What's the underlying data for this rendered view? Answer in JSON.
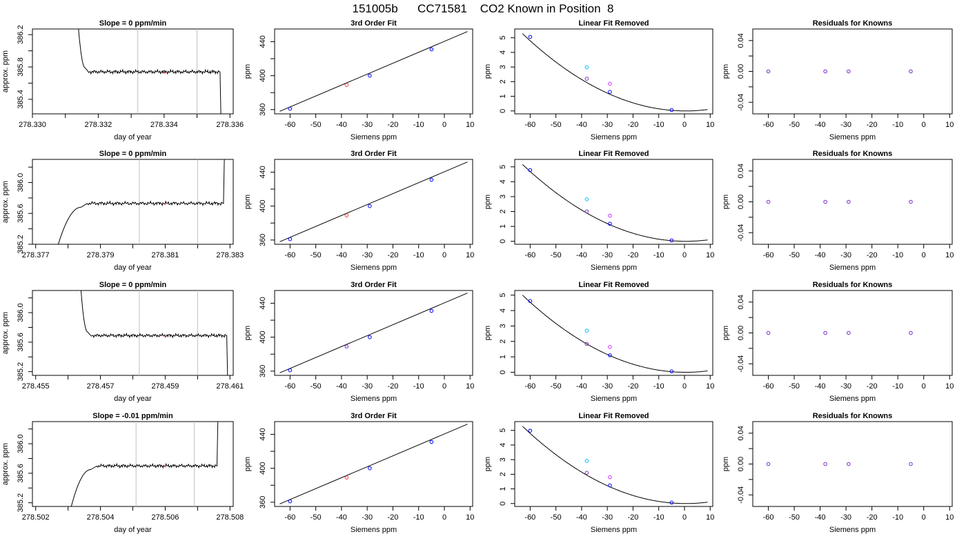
{
  "figure": {
    "title": "151005b      CC71581    CO2 Known in Position  8"
  },
  "colors": {
    "axis": "#000000",
    "trace": "#000000",
    "vline": "#c0c0c0",
    "known_blue": "#0000ff",
    "known_cyan": "#00bfff",
    "known_magenta": "#cc33ff",
    "known_purple": "#7b2ccf",
    "known_red": "#ff4040"
  },
  "chart_data": [
    {
      "type": "line",
      "title": "Slope =  0  ppm/min",
      "xlabel": "day of year",
      "ylabel": "approx. ppm",
      "xlim": [
        278.33,
        278.3361
      ],
      "ylim": [
        385.22,
        386.27
      ],
      "xticks": [
        278.33,
        278.331,
        278.332,
        278.333,
        278.334,
        278.335,
        278.336
      ],
      "xtick_labels": [
        "278.330",
        "",
        "278.332",
        "",
        "278.334",
        "",
        "278.336"
      ],
      "yticks": [
        385.4,
        385.6,
        385.8,
        386.0,
        386.2
      ],
      "ytick_labels": [
        "385.4",
        "",
        "385.8",
        "",
        "386.2"
      ],
      "vlines": [
        278.3332,
        278.335
      ],
      "trace": {
        "x_start": 278.3314,
        "x_drop": 278.3357,
        "start_value": 386.27,
        "level": 385.74,
        "end_value": 385.22,
        "rise_end": 278.3316,
        "settle": 278.3317
      },
      "marker": {
        "x": 278.334,
        "y": 385.74
      }
    },
    {
      "type": "scatter",
      "title": "3rd Order Fit",
      "xlabel": "Siemens ppm",
      "ylabel": "ppm",
      "xlim": [
        -66,
        11
      ],
      "ylim": [
        355,
        455
      ],
      "xticks": [
        -60,
        -50,
        -40,
        -30,
        -20,
        -10,
        0,
        10
      ],
      "xtick_labels": [
        "-60",
        "-50",
        "-40",
        "-30",
        "-20",
        "-10",
        "0",
        "10"
      ],
      "yticks": [
        360,
        380,
        400,
        420,
        440
      ],
      "ytick_labels": [
        "360",
        "",
        "400",
        "",
        "440"
      ],
      "line": {
        "x": [
          -64,
          9
        ],
        "y": [
          358,
          452
        ]
      },
      "points": [
        {
          "x": -60,
          "y": 361,
          "color": "#0000ff"
        },
        {
          "x": -38,
          "y": 389,
          "color": "#ff4040"
        },
        {
          "x": -29,
          "y": 400,
          "color": "#0000ff"
        },
        {
          "x": -5,
          "y": 431,
          "color": "#0000ff"
        }
      ]
    },
    {
      "type": "scatter",
      "title": "Linear Fit Removed",
      "xlabel": "Siemens ppm",
      "ylabel": "ppm",
      "xlim": [
        -66,
        11
      ],
      "ylim": [
        -0.2,
        5.6
      ],
      "xticks": [
        -60,
        -50,
        -40,
        -30,
        -20,
        -10,
        0,
        10
      ],
      "xtick_labels": [
        "-60",
        "-50",
        "-40",
        "-30",
        "-20",
        "-10",
        "0",
        "10"
      ],
      "yticks": [
        0,
        1,
        2,
        3,
        4,
        5
      ],
      "ytick_labels": [
        "0",
        "1",
        "2",
        "3",
        "4",
        "5"
      ],
      "curve": {
        "x_from": -63,
        "x_to": 9,
        "vertex": 0.5,
        "coef": 0.00131
      },
      "points": [
        {
          "x": -60,
          "y": 5.06,
          "color": "#0000ff"
        },
        {
          "x": -38,
          "y": 2.98,
          "color": "#00bfff"
        },
        {
          "x": -38,
          "y": 2.2,
          "color": "#7b2ccf"
        },
        {
          "x": -29,
          "y": 1.86,
          "color": "#cc33ff"
        },
        {
          "x": -29,
          "y": 1.3,
          "color": "#0000ff"
        },
        {
          "x": -5,
          "y": 0.06,
          "color": "#0000ff"
        }
      ]
    },
    {
      "type": "scatter",
      "title": "Residuals for Knowns",
      "xlabel": "Siemens ppm",
      "ylabel": "ppm",
      "xlim": [
        -66,
        11
      ],
      "ylim": [
        -0.055,
        0.055
      ],
      "xticks": [
        -60,
        -50,
        -40,
        -30,
        -20,
        -10,
        0,
        10
      ],
      "xtick_labels": [
        "-60",
        "-50",
        "-40",
        "-30",
        "-20",
        "-10",
        "0",
        "10"
      ],
      "yticks": [
        -0.04,
        -0.02,
        0.0,
        0.02,
        0.04
      ],
      "ytick_labels": [
        "-0.04",
        "",
        "0.00",
        "",
        "0.04"
      ],
      "points": [
        {
          "x": -60,
          "y": 0,
          "color": "#7b2ccf"
        },
        {
          "x": -38,
          "y": 0,
          "color": "#7b2ccf"
        },
        {
          "x": -29,
          "y": 0,
          "color": "#7b2ccf"
        },
        {
          "x": -5,
          "y": 0,
          "color": "#7b2ccf"
        }
      ]
    },
    {
      "type": "line",
      "title": "Slope =  0  ppm/min",
      "xlabel": "day of year",
      "ylabel": "approx. ppm",
      "xlim": [
        278.3769,
        278.3831
      ],
      "ylim": [
        385.2,
        386.3
      ],
      "xticks": [
        278.377,
        278.378,
        278.379,
        278.38,
        278.381,
        278.382,
        278.383
      ],
      "xtick_labels": [
        "278.377",
        "",
        "278.379",
        "",
        "278.381",
        "",
        "278.383"
      ],
      "yticks": [
        385.2,
        385.4,
        385.6,
        385.8,
        386.0,
        386.2
      ],
      "ytick_labels": [
        "385.2",
        "",
        "385.6",
        "",
        "386.0",
        ""
      ],
      "vlines": [
        278.3802,
        278.382
      ],
      "trace": {
        "x_start": 278.3777,
        "x_drop": 278.3828,
        "start_value": 385.2,
        "level": 385.73,
        "end_value": 386.3,
        "rise_end": 278.3784,
        "settle": 278.3786
      },
      "marker": {
        "x": 278.381,
        "y": 385.73
      }
    },
    {
      "type": "scatter",
      "title": "3rd Order Fit",
      "xlabel": "Siemens ppm",
      "ylabel": "ppm",
      "xlim": [
        -66,
        11
      ],
      "ylim": [
        355,
        455
      ],
      "xticks": [
        -60,
        -50,
        -40,
        -30,
        -20,
        -10,
        0,
        10
      ],
      "xtick_labels": [
        "-60",
        "-50",
        "-40",
        "-30",
        "-20",
        "-10",
        "0",
        "10"
      ],
      "yticks": [
        360,
        380,
        400,
        420,
        440
      ],
      "ytick_labels": [
        "360",
        "",
        "400",
        "",
        "440"
      ],
      "line": {
        "x": [
          -64,
          9
        ],
        "y": [
          358,
          452
        ]
      },
      "points": [
        {
          "x": -60,
          "y": 361,
          "color": "#0000ff"
        },
        {
          "x": -38,
          "y": 389,
          "color": "#ff4040"
        },
        {
          "x": -29,
          "y": 400,
          "color": "#0000ff"
        },
        {
          "x": -5,
          "y": 431,
          "color": "#0000ff"
        }
      ]
    },
    {
      "type": "scatter",
      "title": "Linear Fit Removed",
      "xlabel": "Siemens ppm",
      "ylabel": "ppm",
      "xlim": [
        -66,
        11
      ],
      "ylim": [
        -0.2,
        5.5
      ],
      "xticks": [
        -60,
        -50,
        -40,
        -30,
        -20,
        -10,
        0,
        10
      ],
      "xtick_labels": [
        "-60",
        "-50",
        "-40",
        "-30",
        "-20",
        "-10",
        "0",
        "10"
      ],
      "yticks": [
        0,
        1,
        2,
        3,
        4,
        5
      ],
      "ytick_labels": [
        "0",
        "1",
        "2",
        "3",
        "4",
        "5"
      ],
      "curve": {
        "x_from": -63,
        "x_to": 9,
        "vertex": 0.5,
        "coef": 0.00128
      },
      "points": [
        {
          "x": -60,
          "y": 4.78,
          "color": "#0000ff"
        },
        {
          "x": -38,
          "y": 2.82,
          "color": "#00bfff"
        },
        {
          "x": -38,
          "y": 2.0,
          "color": "#7b2ccf"
        },
        {
          "x": -29,
          "y": 1.72,
          "color": "#cc33ff"
        },
        {
          "x": -29,
          "y": 1.18,
          "color": "#0000ff"
        },
        {
          "x": -5,
          "y": 0.06,
          "color": "#0000ff"
        }
      ]
    },
    {
      "type": "scatter",
      "title": "Residuals for Knowns",
      "xlabel": "Siemens ppm",
      "ylabel": "ppm",
      "xlim": [
        -66,
        11
      ],
      "ylim": [
        -0.055,
        0.055
      ],
      "xticks": [
        -60,
        -50,
        -40,
        -30,
        -20,
        -10,
        0,
        10
      ],
      "xtick_labels": [
        "-60",
        "-50",
        "-40",
        "-30",
        "-20",
        "-10",
        "0",
        "10"
      ],
      "yticks": [
        -0.04,
        -0.02,
        0.0,
        0.02,
        0.04
      ],
      "ytick_labels": [
        "-0.04",
        "",
        "0.00",
        "",
        "0.04"
      ],
      "points": [
        {
          "x": -60,
          "y": 0,
          "color": "#7b2ccf"
        },
        {
          "x": -38,
          "y": 0,
          "color": "#7b2ccf"
        },
        {
          "x": -29,
          "y": 0,
          "color": "#7b2ccf"
        },
        {
          "x": -5,
          "y": 0,
          "color": "#7b2ccf"
        }
      ]
    },
    {
      "type": "line",
      "title": "Slope =  0  ppm/min",
      "xlabel": "day of year",
      "ylabel": "approx. ppm",
      "xlim": [
        278.4549,
        278.4611
      ],
      "ylim": [
        385.15,
        386.3
      ],
      "xticks": [
        278.455,
        278.456,
        278.457,
        278.458,
        278.459,
        278.46,
        278.461
      ],
      "xtick_labels": [
        "278.455",
        "",
        "278.457",
        "",
        "278.459",
        "",
        "278.461"
      ],
      "yticks": [
        385.2,
        385.4,
        385.6,
        385.8,
        386.0,
        386.2
      ],
      "ytick_labels": [
        "385.2",
        "",
        "385.6",
        "",
        "386.0",
        ""
      ],
      "vlines": [
        278.4582,
        278.46
      ],
      "trace": {
        "x_start": 278.4564,
        "x_drop": 278.4609,
        "start_value": 386.3,
        "level": 385.69,
        "end_value": 385.15,
        "rise_end": 278.4566,
        "settle": 278.4567
      },
      "marker": {
        "x": 278.459,
        "y": 385.69
      }
    },
    {
      "type": "scatter",
      "title": "3rd Order Fit",
      "xlabel": "Siemens ppm",
      "ylabel": "ppm",
      "xlim": [
        -66,
        11
      ],
      "ylim": [
        355,
        455
      ],
      "xticks": [
        -60,
        -50,
        -40,
        -30,
        -20,
        -10,
        0,
        10
      ],
      "xtick_labels": [
        "-60",
        "-50",
        "-40",
        "-30",
        "-20",
        "-10",
        "0",
        "10"
      ],
      "yticks": [
        360,
        380,
        400,
        420,
        440
      ],
      "ytick_labels": [
        "360",
        "",
        "400",
        "",
        "440"
      ],
      "line": {
        "x": [
          -64,
          9
        ],
        "y": [
          358,
          452
        ]
      },
      "points": [
        {
          "x": -60,
          "y": 361,
          "color": "#0000ff"
        },
        {
          "x": -38,
          "y": 389,
          "color": "#7b2ccf"
        },
        {
          "x": -29,
          "y": 400,
          "color": "#0000ff"
        },
        {
          "x": -5,
          "y": 431,
          "color": "#0000ff"
        }
      ]
    },
    {
      "type": "scatter",
      "title": "Linear Fit Removed",
      "xlabel": "Siemens ppm",
      "ylabel": "ppm",
      "xlim": [
        -66,
        11
      ],
      "ylim": [
        -0.2,
        5.3
      ],
      "xticks": [
        -60,
        -50,
        -40,
        -30,
        -20,
        -10,
        0,
        10
      ],
      "xtick_labels": [
        "-60",
        "-50",
        "-40",
        "-30",
        "-20",
        "-10",
        "0",
        "10"
      ],
      "yticks": [
        0,
        1,
        2,
        3,
        4,
        5
      ],
      "ytick_labels": [
        "0",
        "1",
        "2",
        "3",
        "4",
        "5"
      ],
      "curve": {
        "x_from": -63,
        "x_to": 9,
        "vertex": 0.5,
        "coef": 0.00124
      },
      "points": [
        {
          "x": -60,
          "y": 4.62,
          "color": "#0000ff"
        },
        {
          "x": -38,
          "y": 2.7,
          "color": "#00bfff"
        },
        {
          "x": -38,
          "y": 1.84,
          "color": "#7b2ccf"
        },
        {
          "x": -29,
          "y": 1.64,
          "color": "#cc33ff"
        },
        {
          "x": -29,
          "y": 1.1,
          "color": "#0000ff"
        },
        {
          "x": -5,
          "y": 0.06,
          "color": "#0000ff"
        }
      ]
    },
    {
      "type": "scatter",
      "title": "Residuals for Knowns",
      "xlabel": "Siemens ppm",
      "ylabel": "ppm",
      "xlim": [
        -66,
        11
      ],
      "ylim": [
        -0.055,
        0.055
      ],
      "xticks": [
        -60,
        -50,
        -40,
        -30,
        -20,
        -10,
        0,
        10
      ],
      "xtick_labels": [
        "-60",
        "-50",
        "-40",
        "-30",
        "-20",
        "-10",
        "0",
        "10"
      ],
      "yticks": [
        -0.04,
        -0.02,
        0.0,
        0.02,
        0.04
      ],
      "ytick_labels": [
        "-0.04",
        "",
        "0.00",
        "",
        "0.04"
      ],
      "points": [
        {
          "x": -60,
          "y": 0,
          "color": "#7b2ccf"
        },
        {
          "x": -38,
          "y": 0,
          "color": "#7b2ccf"
        },
        {
          "x": -29,
          "y": 0,
          "color": "#7b2ccf"
        },
        {
          "x": -5,
          "y": 0,
          "color": "#7b2ccf"
        }
      ]
    },
    {
      "type": "line",
      "title": "Slope =  -0.01  ppm/min",
      "xlabel": "day of year",
      "ylabel": "approx. ppm",
      "xlim": [
        278.5019,
        278.5081
      ],
      "ylim": [
        385.15,
        386.3
      ],
      "xticks": [
        278.502,
        278.503,
        278.504,
        278.505,
        278.506,
        278.507,
        278.508
      ],
      "xtick_labels": [
        "278.502",
        "",
        "278.504",
        "",
        "278.506",
        "",
        "278.508"
      ],
      "yticks": [
        385.2,
        385.4,
        385.6,
        385.8,
        386.0,
        386.2
      ],
      "ytick_labels": [
        "385.2",
        "",
        "385.6",
        "",
        "386.0",
        ""
      ],
      "vlines": [
        278.5051,
        278.5069
      ],
      "trace": {
        "x_start": 278.5031,
        "x_drop": 278.5076,
        "start_value": 385.15,
        "level": 385.7,
        "end_value": 386.3,
        "rise_end": 278.5037,
        "settle": 278.5039
      },
      "marker": {
        "x": 278.506,
        "y": 385.7
      }
    },
    {
      "type": "scatter",
      "title": "3rd Order Fit",
      "xlabel": "Siemens ppm",
      "ylabel": "ppm",
      "xlim": [
        -66,
        11
      ],
      "ylim": [
        355,
        455
      ],
      "xticks": [
        -60,
        -50,
        -40,
        -30,
        -20,
        -10,
        0,
        10
      ],
      "xtick_labels": [
        "-60",
        "-50",
        "-40",
        "-30",
        "-20",
        "-10",
        "0",
        "10"
      ],
      "yticks": [
        360,
        380,
        400,
        420,
        440
      ],
      "ytick_labels": [
        "360",
        "",
        "400",
        "",
        "440"
      ],
      "line": {
        "x": [
          -64,
          9
        ],
        "y": [
          358,
          452
        ]
      },
      "points": [
        {
          "x": -60,
          "y": 361,
          "color": "#0000ff"
        },
        {
          "x": -38,
          "y": 389,
          "color": "#ff4040"
        },
        {
          "x": -29,
          "y": 400,
          "color": "#0000ff"
        },
        {
          "x": -5,
          "y": 431,
          "color": "#0000ff"
        }
      ]
    },
    {
      "type": "scatter",
      "title": "Linear Fit Removed",
      "xlabel": "Siemens ppm",
      "ylabel": "ppm",
      "xlim": [
        -66,
        11
      ],
      "ylim": [
        -0.2,
        5.6
      ],
      "xticks": [
        -60,
        -50,
        -40,
        -30,
        -20,
        -10,
        0,
        10
      ],
      "xtick_labels": [
        "-60",
        "-50",
        "-40",
        "-30",
        "-20",
        "-10",
        "0",
        "10"
      ],
      "yticks": [
        0,
        1,
        2,
        3,
        4,
        5
      ],
      "ytick_labels": [
        "0",
        "1",
        "2",
        "3",
        "4",
        "5"
      ],
      "curve": {
        "x_from": -63,
        "x_to": 9,
        "vertex": 0.5,
        "coef": 0.00131
      },
      "points": [
        {
          "x": -60,
          "y": 4.98,
          "color": "#0000ff"
        },
        {
          "x": -38,
          "y": 2.92,
          "color": "#00bfff"
        },
        {
          "x": -38,
          "y": 2.1,
          "color": "#7b2ccf"
        },
        {
          "x": -29,
          "y": 1.8,
          "color": "#cc33ff"
        },
        {
          "x": -29,
          "y": 1.24,
          "color": "#0000ff"
        },
        {
          "x": -5,
          "y": 0.06,
          "color": "#0000ff"
        }
      ]
    },
    {
      "type": "scatter",
      "title": "Residuals for Knowns",
      "xlabel": "Siemens ppm",
      "ylabel": "ppm",
      "xlim": [
        -66,
        11
      ],
      "ylim": [
        -0.055,
        0.055
      ],
      "xticks": [
        -60,
        -50,
        -40,
        -30,
        -20,
        -10,
        0,
        10
      ],
      "xtick_labels": [
        "-60",
        "-50",
        "-40",
        "-30",
        "-20",
        "-10",
        "0",
        "10"
      ],
      "yticks": [
        -0.04,
        -0.02,
        0.0,
        0.02,
        0.04
      ],
      "ytick_labels": [
        "-0.04",
        "",
        "0.00",
        "",
        "0.04"
      ],
      "points": [
        {
          "x": -60,
          "y": 0,
          "color": "#7b2ccf"
        },
        {
          "x": -38,
          "y": 0,
          "color": "#7b2ccf"
        },
        {
          "x": -29,
          "y": 0,
          "color": "#7b2ccf"
        },
        {
          "x": -5,
          "y": 0,
          "color": "#7b2ccf"
        }
      ]
    }
  ]
}
